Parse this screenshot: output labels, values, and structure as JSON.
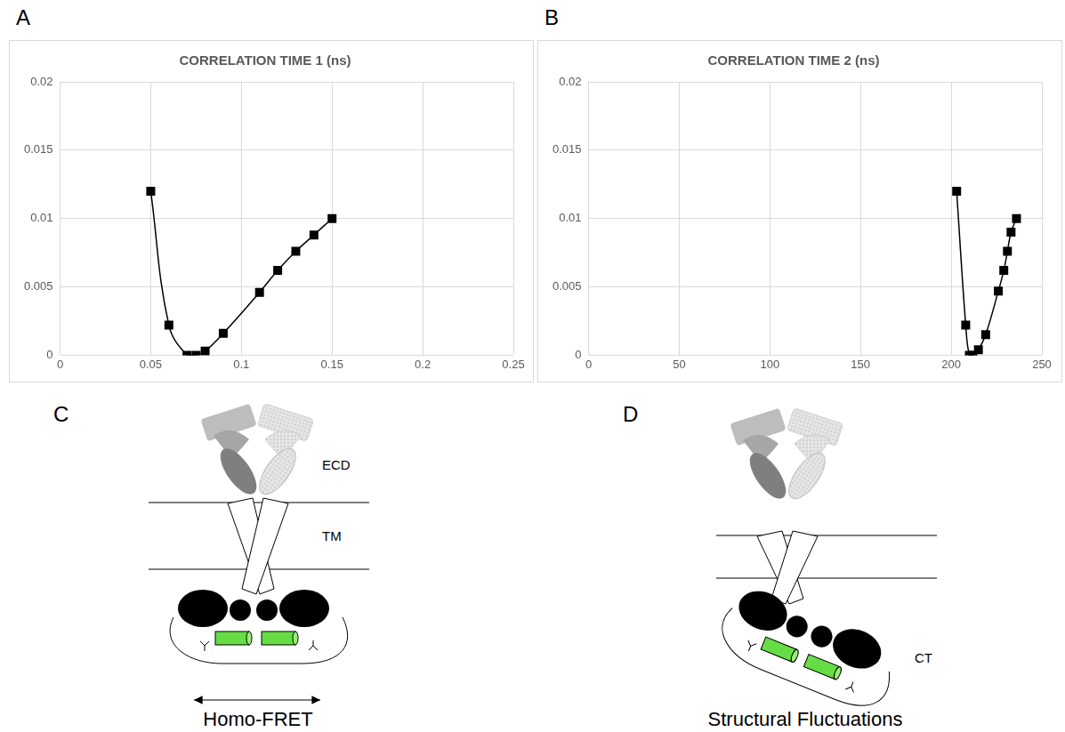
{
  "panel_labels": [
    "A",
    "B",
    "C",
    "D"
  ],
  "chart_data": [
    {
      "type": "line",
      "title": "CORRELATION TIME 1 (ns)",
      "x": [
        0.05,
        0.06,
        0.07,
        0.075,
        0.08,
        0.09,
        0.11,
        0.12,
        0.13,
        0.14,
        0.15
      ],
      "values": [
        0.012,
        0.0022,
        0,
        0,
        0.0003,
        0.0016,
        0.0046,
        0.0062,
        0.0076,
        0.0088,
        0.01
      ],
      "color": "#000000",
      "marker": "square",
      "line_style": "solid",
      "xlim": [
        0,
        0.25
      ],
      "xticks": [
        0,
        0.05,
        0.1,
        0.15,
        0.2,
        0.25
      ],
      "ylim": [
        0,
        0.02
      ],
      "yticks": [
        0,
        0.005,
        0.01,
        0.015,
        0.02
      ],
      "grid": true
    },
    {
      "type": "line",
      "title": "CORRELATION TIME 2 (ns)",
      "x": [
        203,
        208,
        210,
        212,
        215,
        219,
        226,
        229,
        231,
        233,
        236
      ],
      "values": [
        0.012,
        0.0022,
        0,
        0,
        0.0004,
        0.0015,
        0.0047,
        0.0062,
        0.0076,
        0.009,
        0.01
      ],
      "color": "#000000",
      "marker": "square",
      "line_style": "solid",
      "xlim": [
        0,
        250
      ],
      "xticks": [
        0,
        50,
        100,
        150,
        200,
        250
      ],
      "ylim": [
        0,
        0.02
      ],
      "yticks": [
        0,
        0.005,
        0.01,
        0.015,
        0.02
      ],
      "grid": true
    }
  ],
  "diagrams": [
    {
      "ecd": "ECD",
      "tm": "TM",
      "caption": "Homo-FRET"
    },
    {
      "ct": "CT",
      "caption": "Structural Fluctuations"
    }
  ]
}
